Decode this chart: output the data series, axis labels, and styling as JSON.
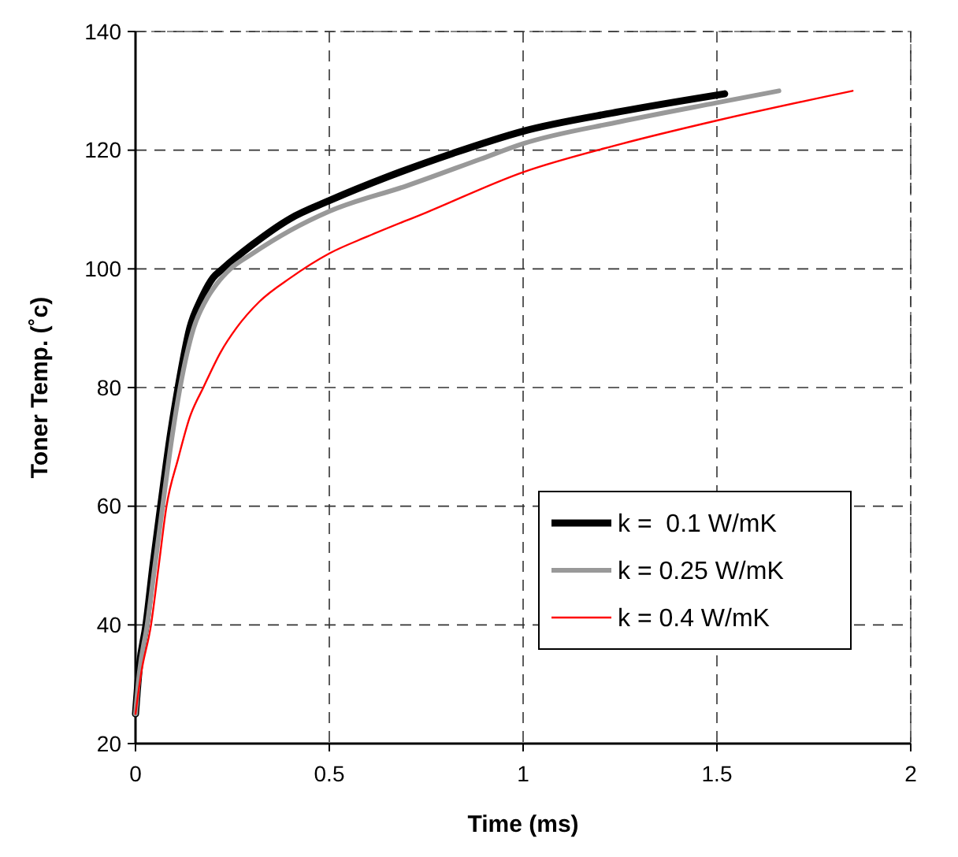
{
  "chart_data": {
    "type": "line",
    "xlabel": "Time (ms)",
    "ylabel": "Toner Temp. (˚c)",
    "xlim": [
      0,
      2
    ],
    "xticks": [
      0,
      0.5,
      1,
      1.5,
      2
    ],
    "ylim": [
      20,
      140
    ],
    "yticks": [
      20,
      40,
      60,
      80,
      100,
      120,
      140
    ],
    "grid": true,
    "legend": "bottom right",
    "line_style": "solid",
    "marker": "none",
    "series": [
      {
        "name": "k =  0.1 W/mK",
        "color": "#000000",
        "x": [
          0,
          0.01,
          0.027,
          0.045,
          0.065,
          0.09,
          0.11,
          0.14,
          0.17,
          0.2,
          0.225,
          0.3,
          0.4,
          0.5,
          0.65,
          0.82,
          1,
          1.25,
          1.52
        ],
        "values": [
          25,
          33,
          40,
          50,
          60,
          72,
          80,
          90,
          95,
          98.5,
          100,
          104,
          108.5,
          111.5,
          115.5,
          119.5,
          123.2,
          126.5,
          129.5
        ]
      },
      {
        "name": "k = 0.25 W/mK",
        "color": "#999999",
        "x": [
          0,
          0.01,
          0.03,
          0.05,
          0.07,
          0.095,
          0.115,
          0.15,
          0.18,
          0.21,
          0.245,
          0.3,
          0.4,
          0.5,
          0.7,
          0.89,
          1,
          1.25,
          1.5,
          1.66
        ],
        "values": [
          25,
          32,
          40,
          50,
          60,
          72,
          80,
          90,
          94.5,
          97.5,
          100,
          102.5,
          106.5,
          109.7,
          114,
          118.5,
          121.1,
          124.8,
          128,
          130
        ]
      },
      {
        "name": "k = 0.4 W/mK",
        "color": "#ff0000",
        "x": [
          0,
          0.015,
          0.04,
          0.06,
          0.08,
          0.11,
          0.14,
          0.175,
          0.22,
          0.26,
          0.32,
          0.4,
          0.5,
          0.6,
          0.75,
          1,
          1.25,
          1.5,
          1.85
        ],
        "values": [
          25,
          32,
          40,
          50,
          60,
          68,
          75,
          80,
          86,
          90,
          94.5,
          98.5,
          102.6,
          105.5,
          109.5,
          116.3,
          121,
          125,
          130
        ]
      }
    ]
  }
}
